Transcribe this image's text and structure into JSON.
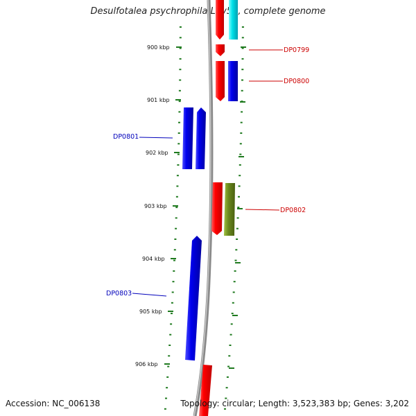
{
  "title": "Desulfotalea psychrophila LSv54, complete genome",
  "accession": "Accession: NC_006138",
  "topology": "Topology: circular; Length: 3,523,383 bp; Genes: 3,202",
  "kbp_labels": [
    "900 kbp",
    "901 kbp",
    "902 kbp",
    "903 kbp",
    "904 kbp",
    "905 kbp",
    "906 kbp"
  ],
  "gene_labels": [
    {
      "name": "DP0799",
      "color": "#cc0000"
    },
    {
      "name": "DP0800",
      "color": "#cc0000"
    },
    {
      "name": "DP0801",
      "color": "#0000bb"
    },
    {
      "name": "DP0802",
      "color": "#cc0000"
    },
    {
      "name": "DP0803",
      "color": "#0000bb"
    }
  ],
  "colors": {
    "backbone": "#8a8a8a",
    "tick_green": "#1f7a1f",
    "gene_red": "#ff0000",
    "gene_blue": "#0000ee",
    "gene_cyan": "#00e0e8",
    "gene_olive": "#6b8a1e"
  }
}
